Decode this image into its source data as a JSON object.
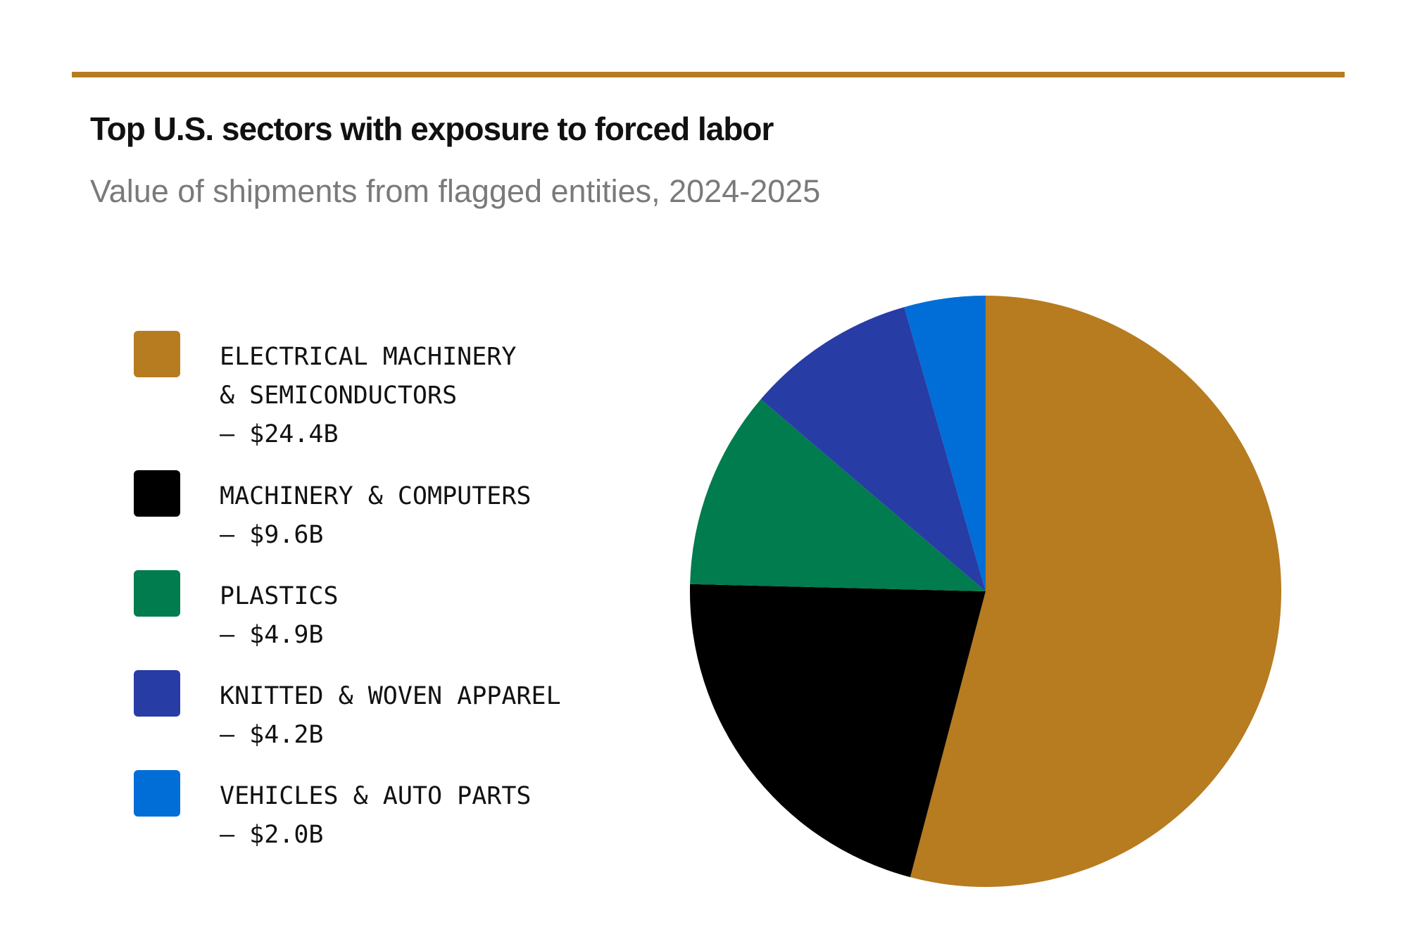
{
  "title": "Top U.S. sectors with exposure to forced labor",
  "subtitle": "Value of shipments from flagged entities, 2024-2025",
  "accent_color": "#b77b20",
  "chart_data": {
    "type": "pie",
    "title": "Top U.S. sectors with exposure to forced labor",
    "subtitle": "Value of shipments from flagged entities, 2024-2025",
    "legend_position": "left",
    "unit": "$B",
    "start_angle_deg": 0,
    "direction": "clockwise",
    "slices": [
      {
        "name": "ELECTRICAL MACHINERY & SEMICONDUCTORS",
        "legend_lines": [
          "ELECTRICAL MACHINERY",
          "& SEMICONDUCTORS",
          "— $24.4B"
        ],
        "value": 24.4,
        "color": "#b77b20"
      },
      {
        "name": "MACHINERY & COMPUTERS",
        "legend_lines": [
          "MACHINERY & COMPUTERS",
          "— $9.6B"
        ],
        "value": 9.6,
        "color": "#000000"
      },
      {
        "name": "PLASTICS",
        "legend_lines": [
          "PLASTICS",
          "— $4.9B"
        ],
        "value": 4.9,
        "color": "#007c4e"
      },
      {
        "name": "KNITTED & WOVEN APPAREL",
        "legend_lines": [
          "KNITTED & WOVEN APPAREL",
          "— $4.2B"
        ],
        "value": 4.2,
        "color": "#283ca6"
      },
      {
        "name": "VEHICLES & AUTO PARTS",
        "legend_lines": [
          "VEHICLES & AUTO PARTS",
          "— $2.0B"
        ],
        "value": 2.0,
        "color": "#006ed6"
      }
    ]
  }
}
